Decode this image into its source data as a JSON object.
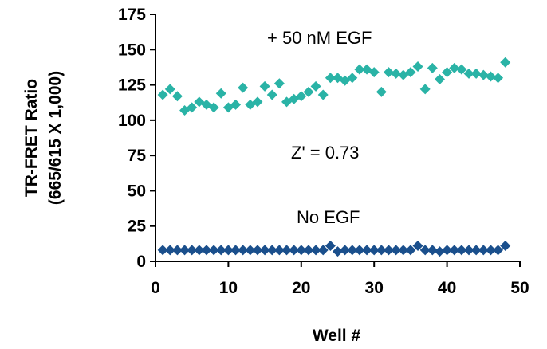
{
  "chart_data": {
    "type": "scatter",
    "xlabel": "Well #",
    "ylabel_line1": "TR-FRET Ratio",
    "ylabel_line2": "(665/615 X 1,000)",
    "xlim": [
      0,
      50
    ],
    "ylim": [
      0,
      175
    ],
    "xticks": [
      "0",
      "10",
      "20",
      "30",
      "40",
      "50"
    ],
    "yticks": [
      "0",
      "25",
      "50",
      "75",
      "100",
      "125",
      "150",
      "175"
    ],
    "grid": false,
    "annotations": {
      "egf": "+ 50 nM EGF",
      "zprime": "Z' = 0.73",
      "no_egf": "No EGF"
    },
    "series": [
      {
        "color": "#2ab3a6",
        "x": [
          1,
          2,
          3,
          4,
          5,
          6,
          7,
          8,
          9,
          10,
          11,
          12,
          13,
          14,
          15,
          16,
          17,
          18,
          19,
          20,
          21,
          22,
          23,
          24,
          25,
          26,
          27,
          28,
          29,
          30,
          31,
          32,
          33,
          34,
          35,
          36,
          37,
          38,
          39,
          40,
          41,
          42,
          43,
          44,
          45,
          46,
          47,
          48
        ],
        "y": [
          118,
          122,
          117,
          107,
          109,
          113,
          111,
          109,
          119,
          109,
          111,
          123,
          111,
          113,
          124,
          118,
          126,
          113,
          115,
          117,
          120,
          124,
          118,
          130,
          130,
          128,
          130,
          136,
          136,
          134,
          120,
          134,
          133,
          132,
          134,
          138,
          122,
          137,
          129,
          134,
          137,
          136,
          133,
          133,
          132,
          131,
          130,
          141
        ]
      },
      {
        "color": "#1a4f8c",
        "x": [
          1,
          2,
          3,
          4,
          5,
          6,
          7,
          8,
          9,
          10,
          11,
          12,
          13,
          14,
          15,
          16,
          17,
          18,
          19,
          20,
          21,
          22,
          23,
          24,
          25,
          26,
          27,
          28,
          29,
          30,
          31,
          32,
          33,
          34,
          35,
          36,
          37,
          38,
          39,
          40,
          41,
          42,
          43,
          44,
          45,
          46,
          47,
          48
        ],
        "y": [
          8,
          8,
          8,
          8,
          8,
          8,
          8,
          8,
          8,
          8,
          8,
          8,
          8,
          8,
          8,
          8,
          8,
          8,
          8,
          8,
          8,
          8,
          8,
          11,
          7,
          8,
          8,
          8,
          8,
          8,
          8,
          8,
          8,
          8,
          8,
          11,
          8,
          8,
          7,
          8,
          8,
          8,
          8,
          8,
          8,
          8,
          8,
          11
        ]
      }
    ]
  }
}
